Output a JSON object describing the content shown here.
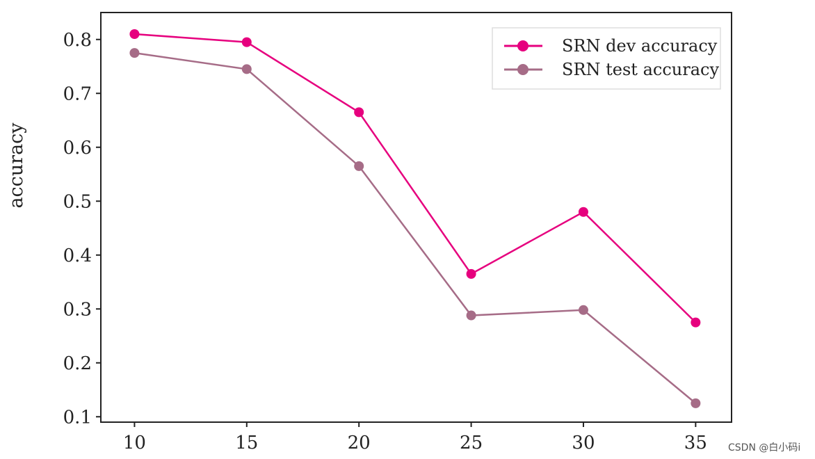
{
  "chart_data": {
    "type": "line",
    "title": "",
    "xlabel": "",
    "ylabel": "accuracy",
    "x": [
      10,
      15,
      20,
      25,
      30,
      35
    ],
    "xticks": [
      "10",
      "15",
      "20",
      "25",
      "30",
      "35"
    ],
    "yticks": [
      "0.1",
      "0.2",
      "0.3",
      "0.4",
      "0.5",
      "0.6",
      "0.7",
      "0.8"
    ],
    "ylim": [
      0.09,
      0.85
    ],
    "xlim": [
      8.5,
      36.6
    ],
    "grid": false,
    "legend_position": "top-right",
    "series": [
      {
        "name": "SRN dev accuracy",
        "color": "#e6007e",
        "values": [
          0.81,
          0.795,
          0.665,
          0.365,
          0.48,
          0.275
        ]
      },
      {
        "name": "SRN test accuracy",
        "color": "#a66c87",
        "values": [
          0.775,
          0.745,
          0.565,
          0.288,
          0.298,
          0.125
        ]
      }
    ]
  },
  "watermark": "CSDN @白小码i"
}
